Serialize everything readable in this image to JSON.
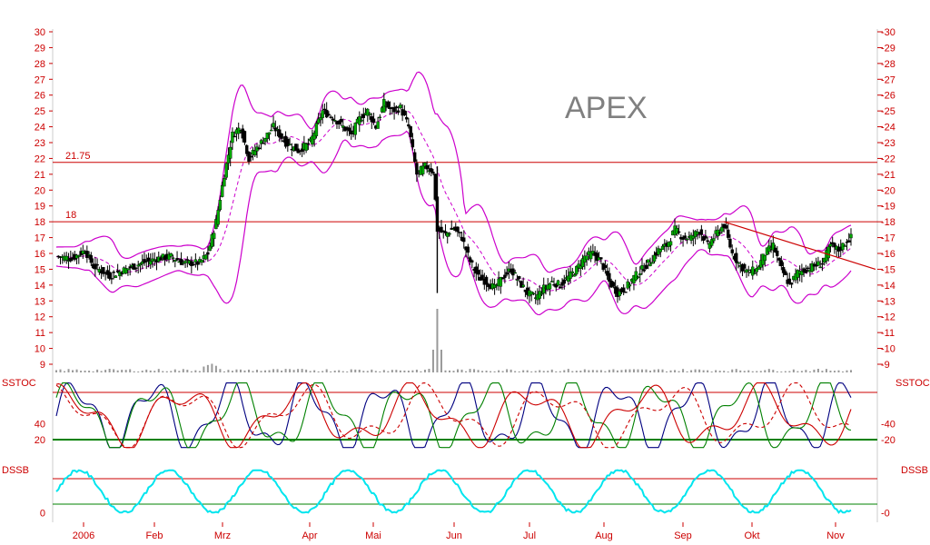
{
  "chart_data": [
    {
      "panel": "price",
      "type": "candlestick",
      "title": "APEX",
      "ylim": [
        8.5,
        30.5
      ],
      "yticks": [
        9,
        10,
        11,
        12,
        13,
        14,
        15,
        16,
        17,
        18,
        19,
        20,
        21,
        22,
        23,
        24,
        25,
        26,
        27,
        28,
        29,
        30
      ],
      "x_labels": [
        "2006",
        "Feb",
        "Mrz",
        "Apr",
        "Mai",
        "Jun",
        "Jul",
        "Aug",
        "Sep",
        "Okt",
        "Nov"
      ],
      "levels": [
        {
          "label": "21.75",
          "value": 21.75
        },
        {
          "label": "18",
          "value": 18
        }
      ],
      "trendline": {
        "from": [
          "Sep",
          18.0
        ],
        "to": [
          "Nov-end",
          15.0
        ]
      },
      "colors": {
        "up": "#00aa00",
        "down": "#000000",
        "bands": "#cc00cc",
        "grid": "#cc0000"
      },
      "close_path": [
        [
          0,
          15.8
        ],
        [
          8,
          15.7
        ],
        [
          14,
          16.2
        ],
        [
          18,
          15.2
        ],
        [
          26,
          14.6
        ],
        [
          34,
          15.0
        ],
        [
          42,
          15.4
        ],
        [
          50,
          15.7
        ],
        [
          56,
          15.8
        ],
        [
          62,
          15.4
        ],
        [
          70,
          15.4
        ],
        [
          74,
          16.0
        ],
        [
          78,
          18.0
        ],
        [
          82,
          21.0
        ],
        [
          86,
          23.5
        ],
        [
          90,
          24.0
        ],
        [
          94,
          22.0
        ],
        [
          100,
          23.0
        ],
        [
          106,
          24.0
        ],
        [
          112,
          23.0
        ],
        [
          118,
          22.5
        ],
        [
          124,
          23.0
        ],
        [
          130,
          25.0
        ],
        [
          136,
          24.5
        ],
        [
          140,
          24.0
        ],
        [
          144,
          23.5
        ],
        [
          148,
          24.5
        ],
        [
          152,
          25.0
        ],
        [
          156,
          24.0
        ],
        [
          160,
          25.5
        ],
        [
          164,
          25.0
        ],
        [
          168,
          25.2
        ],
        [
          172,
          24.0
        ],
        [
          176,
          21.0
        ],
        [
          180,
          21.5
        ],
        [
          184,
          21.2
        ],
        [
          186,
          17.5
        ],
        [
          190,
          17.2
        ],
        [
          194,
          17.6
        ],
        [
          198,
          17.0
        ],
        [
          202,
          15.5
        ],
        [
          206,
          14.5
        ],
        [
          210,
          14.2
        ],
        [
          214,
          13.8
        ],
        [
          218,
          14.5
        ],
        [
          222,
          15.0
        ],
        [
          226,
          14.2
        ],
        [
          230,
          13.5
        ],
        [
          234,
          13.2
        ],
        [
          238,
          13.8
        ],
        [
          242,
          14.2
        ],
        [
          246,
          14.0
        ],
        [
          250,
          14.5
        ],
        [
          254,
          15.0
        ],
        [
          258,
          15.8
        ],
        [
          262,
          16.0
        ],
        [
          266,
          15.5
        ],
        [
          270,
          14.2
        ],
        [
          274,
          13.5
        ],
        [
          278,
          13.8
        ],
        [
          282,
          14.5
        ],
        [
          286,
          15.0
        ],
        [
          290,
          15.5
        ],
        [
          294,
          16.2
        ],
        [
          298,
          16.5
        ],
        [
          302,
          17.5
        ],
        [
          306,
          17.0
        ],
        [
          310,
          17.0
        ],
        [
          314,
          17.5
        ],
        [
          318,
          16.5
        ],
        [
          322,
          17.2
        ],
        [
          326,
          17.8
        ],
        [
          330,
          16.0
        ],
        [
          334,
          15.2
        ],
        [
          338,
          14.8
        ],
        [
          342,
          15.0
        ],
        [
          346,
          16.0
        ],
        [
          350,
          16.5
        ],
        [
          354,
          15.0
        ],
        [
          358,
          14.0
        ],
        [
          362,
          14.8
        ],
        [
          366,
          15.0
        ],
        [
          370,
          15.2
        ],
        [
          374,
          15.4
        ],
        [
          378,
          16.5
        ],
        [
          382,
          16.2
        ],
        [
          386,
          16.8
        ],
        [
          388,
          17.0
        ]
      ],
      "volume_panel": {
        "type": "bar",
        "note": "volume bars",
        "color": "#999999"
      }
    },
    {
      "panel": "sstoc",
      "type": "line",
      "title": "SSTOC",
      "ylim": [
        0,
        100
      ],
      "yticks": [
        20,
        40
      ],
      "levels": [
        20,
        80
      ],
      "series_colors": [
        "#000080",
        "#008000",
        "#cc0000",
        "#cc0000"
      ]
    },
    {
      "panel": "dssb",
      "type": "line",
      "title": "DSSB",
      "ylim": [
        0,
        100
      ],
      "yticks": [
        0
      ],
      "levels": [
        20,
        80
      ],
      "series_colors": [
        "#00e5ee"
      ]
    }
  ]
}
